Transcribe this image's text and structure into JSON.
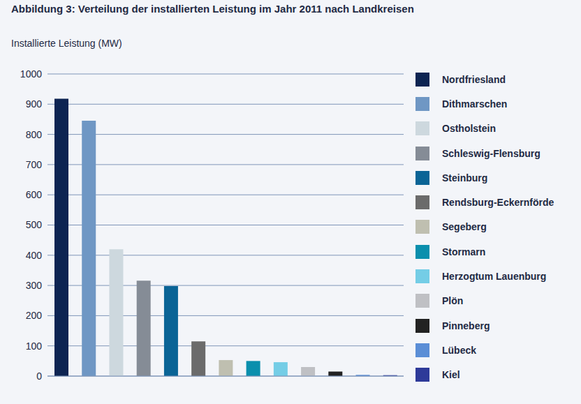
{
  "chart_data": {
    "type": "bar",
    "title": "Abbildung 3: Verteilung der installierten Leistung im Jahr 2011 nach Landkreisen",
    "y_label": "Installierte Leistung (MW)",
    "categories": [
      "Nordfriesland",
      "Dithmarschen",
      "Ostholstein",
      "Schleswig-Flensburg",
      "Steinburg",
      "Rendsburg-Eckernförde",
      "Segeberg",
      "Stormarn",
      "Herzogtum Lauenburg",
      "Plön",
      "Pinneberg",
      "Lübeck",
      "Kiel"
    ],
    "values": [
      918,
      845,
      420,
      316,
      298,
      115,
      53,
      50,
      46,
      30,
      15,
      4,
      3
    ],
    "colors": [
      "#0d2452",
      "#6f97c4",
      "#cdd8de",
      "#858c96",
      "#0a6496",
      "#6b6b6b",
      "#bfbfb0",
      "#0a8fad",
      "#74cde6",
      "#bfc0c4",
      "#222222",
      "#5b8ed6",
      "#2e3a99"
    ],
    "ylim": [
      0,
      1000
    ],
    "yticks": [
      0,
      100,
      200,
      300,
      400,
      500,
      600,
      700,
      800,
      900,
      1000
    ],
    "grid": true,
    "legend": "right",
    "tick_labels": "y"
  }
}
